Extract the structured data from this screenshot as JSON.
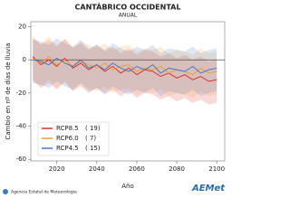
{
  "chart_data": {
    "type": "line",
    "title": "CANTÁBRICO OCCIDENTAL",
    "subtitle": "ANUAL",
    "x_label": "Año",
    "y_label": "Cambio en nº de días de lluvia",
    "x": [
      2008,
      2012,
      2016,
      2020,
      2024,
      2028,
      2032,
      2036,
      2040,
      2044,
      2048,
      2052,
      2056,
      2060,
      2064,
      2068,
      2072,
      2076,
      2080,
      2084,
      2088,
      2092,
      2096,
      2100
    ],
    "series": [
      {
        "name": "RCP8.5",
        "legend_count": "( 19)",
        "color": "#e0302a",
        "values": [
          2,
          -3,
          0,
          -4,
          1,
          -5,
          -2,
          -6,
          -3,
          -7,
          -4,
          -8,
          -5,
          -9,
          -6,
          -7,
          -10,
          -8,
          -11,
          -9,
          -12,
          -10,
          -13,
          -12
        ],
        "upper": [
          14,
          9,
          12,
          8,
          13,
          7,
          10,
          6,
          9,
          5,
          8,
          4,
          7,
          3,
          6,
          5,
          2,
          4,
          1,
          3,
          0,
          2,
          -1,
          0
        ],
        "lower": [
          -12,
          -17,
          -14,
          -18,
          -13,
          -19,
          -16,
          -20,
          -17,
          -21,
          -18,
          -22,
          -19,
          -23,
          -20,
          -21,
          -24,
          -22,
          -25,
          -23,
          -26,
          -24,
          -27,
          -26
        ]
      },
      {
        "name": "RCP6.0",
        "legend_count": "(  7)",
        "color": "#f0a030",
        "values": [
          1,
          -2,
          2,
          -3,
          0,
          -4,
          -1,
          -3,
          -5,
          -2,
          -6,
          -4,
          -3,
          -7,
          -5,
          -6,
          -4,
          -8,
          -6,
          -7,
          -9,
          -5,
          -8,
          -7
        ],
        "upper": [
          13,
          10,
          14,
          9,
          12,
          8,
          11,
          9,
          7,
          10,
          6,
          8,
          9,
          5,
          7,
          6,
          8,
          4,
          6,
          5,
          3,
          7,
          4,
          5
        ],
        "lower": [
          -13,
          -16,
          -12,
          -17,
          -14,
          -18,
          -15,
          -17,
          -19,
          -16,
          -20,
          -18,
          -17,
          -21,
          -19,
          -20,
          -18,
          -22,
          -20,
          -21,
          -23,
          -19,
          -22,
          -21
        ]
      },
      {
        "name": "RCP4.5",
        "legend_count": "( 15)",
        "color": "#4a78c8",
        "values": [
          0,
          -1,
          -3,
          1,
          -2,
          -4,
          0,
          -5,
          -3,
          -6,
          -2,
          -5,
          -7,
          -4,
          -6,
          -3,
          -8,
          -5,
          -6,
          -7,
          -4,
          -8,
          -6,
          -5
        ],
        "upper": [
          12,
          11,
          9,
          13,
          10,
          8,
          12,
          7,
          9,
          6,
          10,
          7,
          5,
          8,
          6,
          9,
          4,
          7,
          6,
          5,
          8,
          4,
          6,
          7
        ],
        "lower": [
          -14,
          -15,
          -17,
          -13,
          -16,
          -18,
          -14,
          -19,
          -17,
          -20,
          -16,
          -19,
          -21,
          -18,
          -20,
          -17,
          -22,
          -19,
          -20,
          -21,
          -18,
          -22,
          -20,
          -19
        ]
      }
    ],
    "xlim": [
      2007,
      2104
    ],
    "ylim": [
      -61,
      23
    ],
    "xticks": [
      2020,
      2040,
      2060,
      2080,
      2100
    ],
    "yticks": [
      -60,
      -40,
      -20,
      0,
      20
    ],
    "zero_line": true,
    "legend": "lower left"
  },
  "footer": {
    "agency": "Agencia Estatal de Meteorología",
    "logo": "AEMet"
  }
}
